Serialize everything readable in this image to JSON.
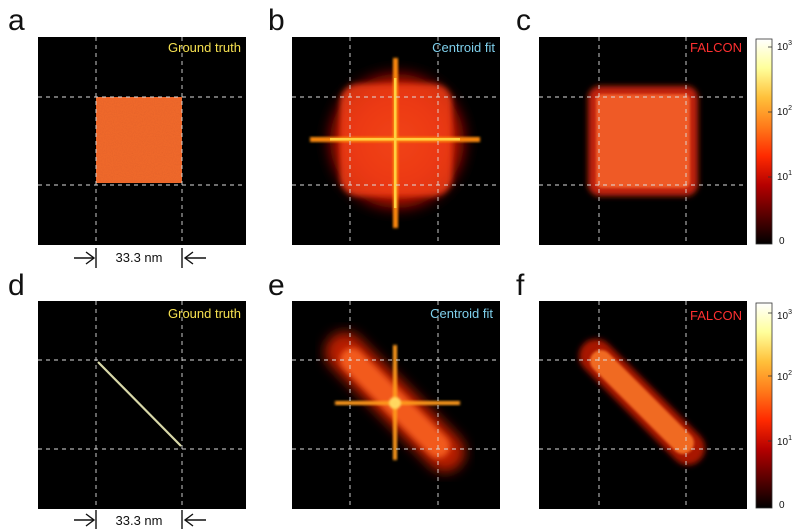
{
  "figure": {
    "panels": [
      {
        "letter": "a",
        "title": "Ground truth",
        "title_color": "#f5e050",
        "kind": "square-gt"
      },
      {
        "letter": "b",
        "title": "Centroid fit",
        "title_color": "#7fd0ec",
        "kind": "square-centroid"
      },
      {
        "letter": "c",
        "title": "FALCON",
        "title_color": "#ff3030",
        "kind": "square-falcon"
      },
      {
        "letter": "d",
        "title": "Ground truth",
        "title_color": "#f5e050",
        "kind": "line-gt"
      },
      {
        "letter": "e",
        "title": "Centroid fit",
        "title_color": "#7fd0ec",
        "kind": "line-centroid"
      },
      {
        "letter": "f",
        "title": "FALCON",
        "title_color": "#ff3030",
        "kind": "line-falcon"
      }
    ],
    "scale_bar_label": "33.3 nm",
    "colorbar": {
      "scale": "log",
      "ticks": [
        {
          "base": "10",
          "exp": "3"
        },
        {
          "base": "10",
          "exp": "2"
        },
        {
          "base": "10",
          "exp": "1"
        },
        {
          "base": "0",
          "exp": ""
        }
      ],
      "colormap": [
        "#000000",
        "#5a0000",
        "#b40000",
        "#ff2a00",
        "#ff7a1a",
        "#ffc03a",
        "#ffff9a",
        "#ffffff"
      ]
    }
  }
}
